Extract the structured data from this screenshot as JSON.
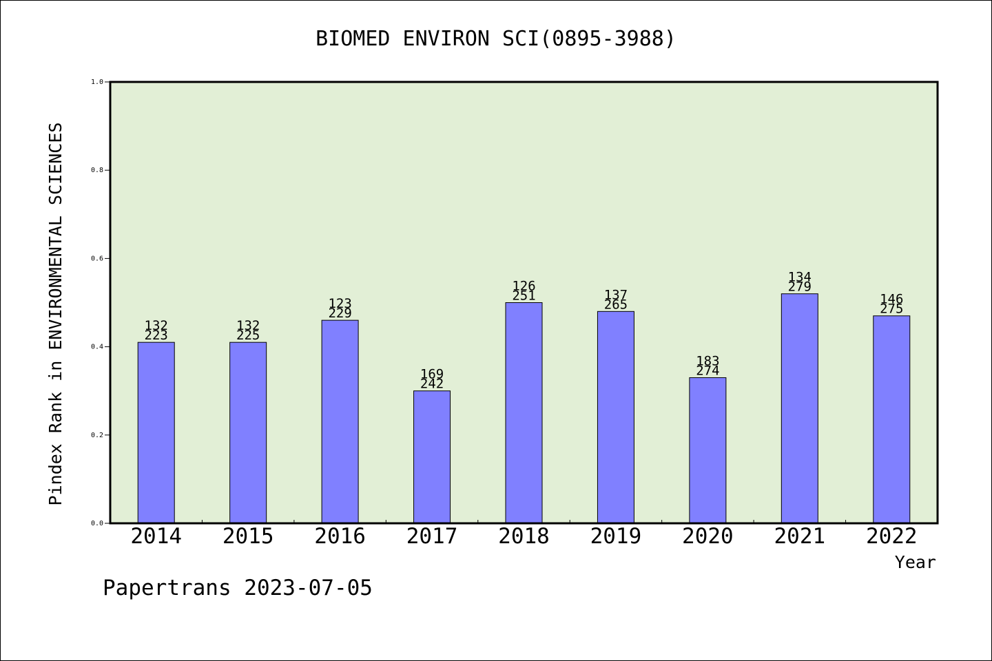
{
  "chart_data": {
    "type": "bar",
    "title": "BIOMED ENVIRON SCI(0895-3988)",
    "xlabel": "Year",
    "ylabel": "Pindex Rank in ENVIRONMENTAL SCIENCES",
    "ylim": [
      0.0,
      1.0
    ],
    "yticks": [
      "0.0",
      "0.2",
      "0.4",
      "0.6",
      "0.8",
      "1.0"
    ],
    "grid": false,
    "categories": [
      "2014",
      "2015",
      "2016",
      "2017",
      "2018",
      "2019",
      "2020",
      "2021",
      "2022"
    ],
    "values": [
      0.41,
      0.41,
      0.46,
      0.3,
      0.5,
      0.48,
      0.33,
      0.52,
      0.47
    ],
    "rank": [
      "132",
      "132",
      "123",
      "169",
      "126",
      "137",
      "183",
      "134",
      "146"
    ],
    "total": [
      "223",
      "225",
      "229",
      "242",
      "251",
      "265",
      "274",
      "279",
      "275"
    ],
    "colors": {
      "plot_bg": "#e2efd6",
      "bar": "#8080ff",
      "axis": "#000000"
    }
  },
  "footer": "Papertrans 2023-07-05"
}
